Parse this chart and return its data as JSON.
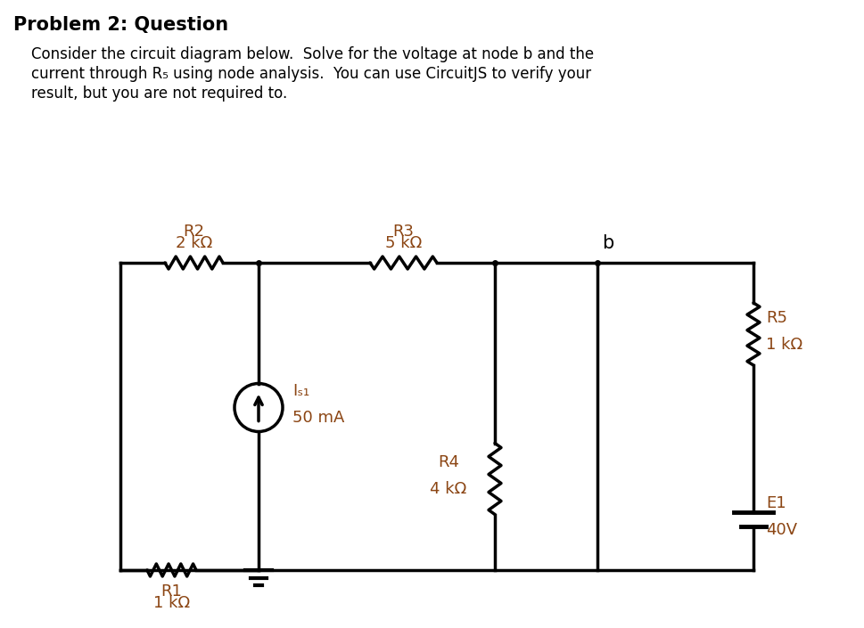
{
  "title": "Problem 2: Question",
  "description_lines": [
    "Consider the circuit diagram below.  Solve for the voltage at node b and the",
    "current through R₅ using node analysis.  You can use CircuitJS to verify your",
    "result, but you are not required to."
  ],
  "bg_color": "#ffffff",
  "line_color": "#000000",
  "component_label_color": "#8B4513",
  "components": {
    "R1": {
      "label": "R1",
      "value": "1 kΩ"
    },
    "R2": {
      "label": "R2",
      "value": "2 kΩ"
    },
    "R3": {
      "label": "R3",
      "value": "5 kΩ"
    },
    "R4": {
      "label": "R4",
      "value": "4 kΩ"
    },
    "R5": {
      "label": "R5",
      "value": "1 kΩ"
    },
    "IS1": {
      "label": "Iₛ₁",
      "value": "50 mA"
    },
    "E1": {
      "label": "E1",
      "value": "40V"
    }
  },
  "node_label": "b",
  "title_fontsize": 15,
  "desc_fontsize": 12,
  "comp_fontsize": 13
}
